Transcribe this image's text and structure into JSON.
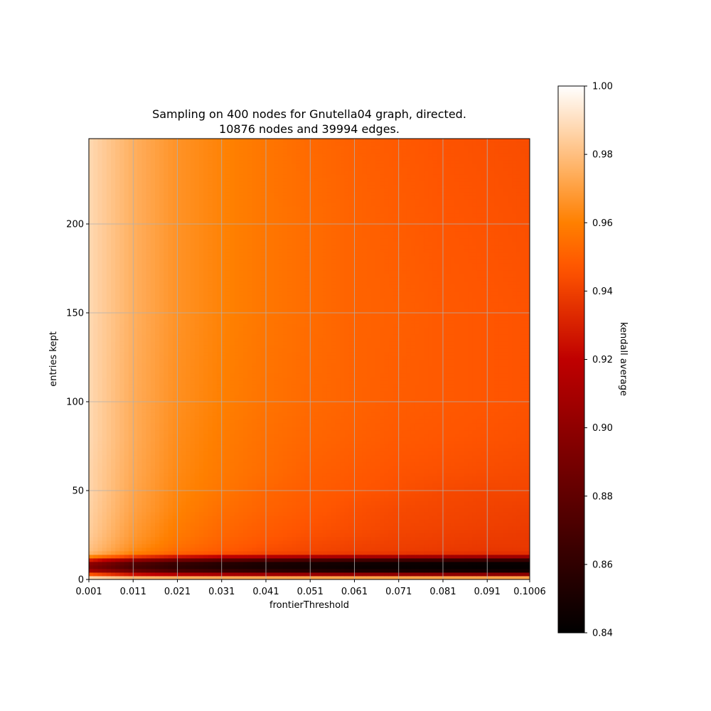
{
  "chart_data": {
    "type": "heatmap",
    "title_lines": [
      "Sampling on 400 nodes for Gnutella04 graph, directed.",
      "10876 nodes and 39994 edges."
    ],
    "xlabel": "frontierThreshold",
    "ylabel": "entries kept",
    "x_range": [
      0.001,
      0.1006
    ],
    "y_range": [
      0,
      248
    ],
    "x_ticks": [
      0.001,
      0.011,
      0.021,
      0.031,
      0.041,
      0.051,
      0.061,
      0.071,
      0.081,
      0.091,
      0.1006
    ],
    "x_tick_labels": [
      "0.001",
      "0.011",
      "0.021",
      "0.031",
      "0.041",
      "0.051",
      "0.061",
      "0.071",
      "0.081",
      "0.091",
      "0.1006"
    ],
    "y_ticks": [
      0,
      50,
      100,
      150,
      200
    ],
    "y_tick_labels": [
      "0",
      "50",
      "100",
      "150",
      "200"
    ],
    "grid": true,
    "colormap": "gist_heat",
    "colorbar": {
      "label": "kendall average",
      "range": [
        0.84,
        1.0
      ],
      "ticks": [
        0.84,
        0.86,
        0.88,
        0.9,
        0.92,
        0.94,
        0.96,
        0.98,
        1.0
      ],
      "tick_labels": [
        "0.84",
        "0.86",
        "0.88",
        "0.90",
        "0.92",
        "0.94",
        "0.96",
        "0.98",
        "1.00"
      ]
    },
    "grid_columns": [
      0.001,
      0.011,
      0.021,
      0.031,
      0.041,
      0.051,
      0.061,
      0.071,
      0.081,
      0.091,
      0.1006
    ],
    "grid_rows": [
      0,
      2,
      4,
      6,
      8,
      10,
      12,
      14,
      16,
      20,
      25,
      30,
      40,
      50,
      60,
      80,
      100,
      150,
      200,
      248
    ],
    "values": [
      [
        1.0,
        1.0,
        0.999,
        0.999,
        0.998,
        0.998,
        0.998,
        0.998,
        0.998,
        0.998,
        0.998
      ],
      [
        0.975,
        0.955,
        0.95,
        0.948,
        0.947,
        0.946,
        0.945,
        0.945,
        0.945,
        0.945,
        0.945
      ],
      [
        0.92,
        0.895,
        0.88,
        0.872,
        0.866,
        0.862,
        0.858,
        0.856,
        0.854,
        0.853,
        0.852
      ],
      [
        0.9,
        0.875,
        0.862,
        0.856,
        0.852,
        0.849,
        0.846,
        0.845,
        0.844,
        0.843,
        0.843
      ],
      [
        0.89,
        0.868,
        0.858,
        0.852,
        0.848,
        0.846,
        0.844,
        0.843,
        0.842,
        0.841,
        0.841
      ],
      [
        0.91,
        0.882,
        0.868,
        0.86,
        0.855,
        0.852,
        0.85,
        0.848,
        0.847,
        0.846,
        0.846
      ],
      [
        0.95,
        0.92,
        0.905,
        0.897,
        0.892,
        0.888,
        0.885,
        0.883,
        0.882,
        0.881,
        0.88
      ],
      [
        0.975,
        0.958,
        0.948,
        0.943,
        0.94,
        0.938,
        0.936,
        0.935,
        0.934,
        0.933,
        0.933
      ],
      [
        0.98,
        0.963,
        0.953,
        0.948,
        0.944,
        0.942,
        0.94,
        0.939,
        0.938,
        0.937,
        0.937
      ],
      [
        0.982,
        0.966,
        0.956,
        0.95,
        0.946,
        0.943,
        0.941,
        0.94,
        0.939,
        0.938,
        0.938
      ],
      [
        0.984,
        0.968,
        0.958,
        0.952,
        0.948,
        0.945,
        0.943,
        0.941,
        0.94,
        0.939,
        0.938
      ],
      [
        0.985,
        0.969,
        0.959,
        0.953,
        0.949,
        0.946,
        0.944,
        0.942,
        0.941,
        0.94,
        0.939
      ],
      [
        0.986,
        0.971,
        0.961,
        0.955,
        0.951,
        0.948,
        0.945,
        0.943,
        0.942,
        0.941,
        0.94
      ],
      [
        0.987,
        0.972,
        0.962,
        0.957,
        0.952,
        0.949,
        0.947,
        0.945,
        0.943,
        0.942,
        0.942
      ],
      [
        0.987,
        0.973,
        0.963,
        0.958,
        0.954,
        0.95,
        0.948,
        0.946,
        0.945,
        0.944,
        0.943
      ],
      [
        0.988,
        0.974,
        0.964,
        0.959,
        0.955,
        0.952,
        0.95,
        0.948,
        0.947,
        0.946,
        0.945
      ],
      [
        0.988,
        0.974,
        0.965,
        0.96,
        0.956,
        0.953,
        0.951,
        0.949,
        0.948,
        0.947,
        0.946
      ],
      [
        0.988,
        0.975,
        0.966,
        0.961,
        0.957,
        0.954,
        0.951,
        0.95,
        0.948,
        0.947,
        0.946
      ],
      [
        0.988,
        0.975,
        0.966,
        0.961,
        0.957,
        0.954,
        0.951,
        0.949,
        0.947,
        0.946,
        0.945
      ],
      [
        0.988,
        0.975,
        0.966,
        0.961,
        0.957,
        0.953,
        0.95,
        0.948,
        0.946,
        0.945,
        0.944
      ]
    ]
  }
}
